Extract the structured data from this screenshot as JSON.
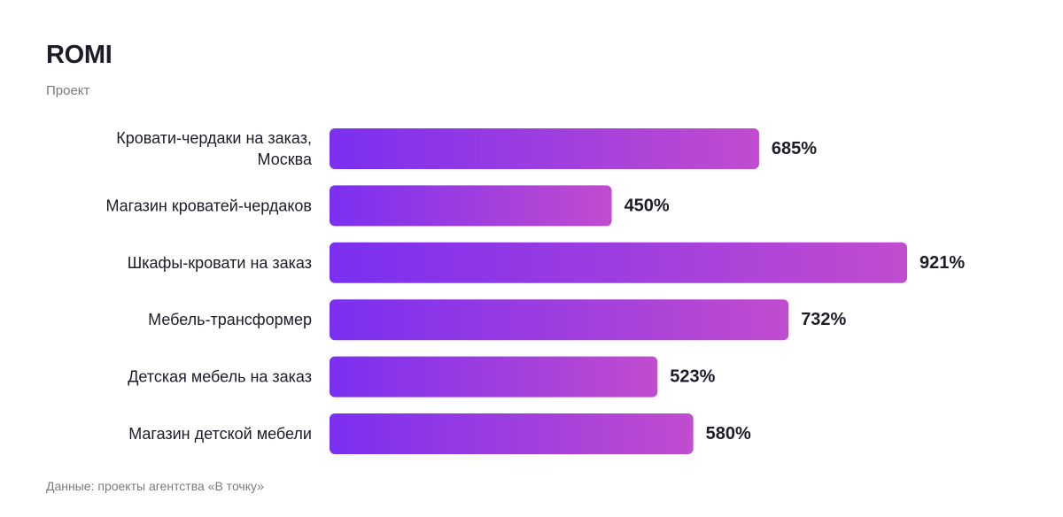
{
  "colors": {
    "bar_start": "#7b2ff0",
    "bar_end": "#c14ccf",
    "text": "#1c1c2a",
    "muted": "#7a7a82"
  },
  "footer": {
    "source": "Данные: проекты агентства «В точку»"
  },
  "chart_data": {
    "type": "bar",
    "orientation": "horizontal",
    "title": "ROMI",
    "subtitle": "Проект",
    "categories": [
      "Кровати-чердаки на заказ, Москва",
      "Магазин кроватей-чердаков",
      "Шкафы-кровати на заказ",
      "Мебель-трансформер",
      "Детская мебель на заказ",
      "Магазин детской мебели"
    ],
    "category_lines": [
      [
        "Кровати-чердаки на заказ,",
        "Москва"
      ],
      [
        "Магазин кроватей-чердаков"
      ],
      [
        "Шкафы-кровати на заказ"
      ],
      [
        "Мебель-трансформер"
      ],
      [
        "Детская мебель на заказ"
      ],
      [
        "Магазин детской мебели"
      ]
    ],
    "values": [
      685,
      450,
      921,
      732,
      523,
      580
    ],
    "value_labels": [
      "685%",
      "450%",
      "921%",
      "732%",
      "523%",
      "580%"
    ],
    "unit": "%",
    "xlim": [
      0,
      921
    ],
    "grid": false,
    "legend": "none"
  }
}
